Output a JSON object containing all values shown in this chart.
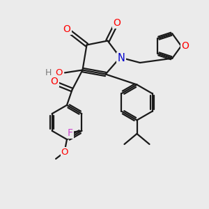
{
  "bg_color": "#ebebeb",
  "bond_color": "#1a1a1a",
  "bond_width": 1.6,
  "atom_colors": {
    "O": "#ff0000",
    "N": "#0000cd",
    "F": "#cc44cc",
    "C": "#1a1a1a",
    "H": "#777777"
  },
  "font_size": 9.5
}
